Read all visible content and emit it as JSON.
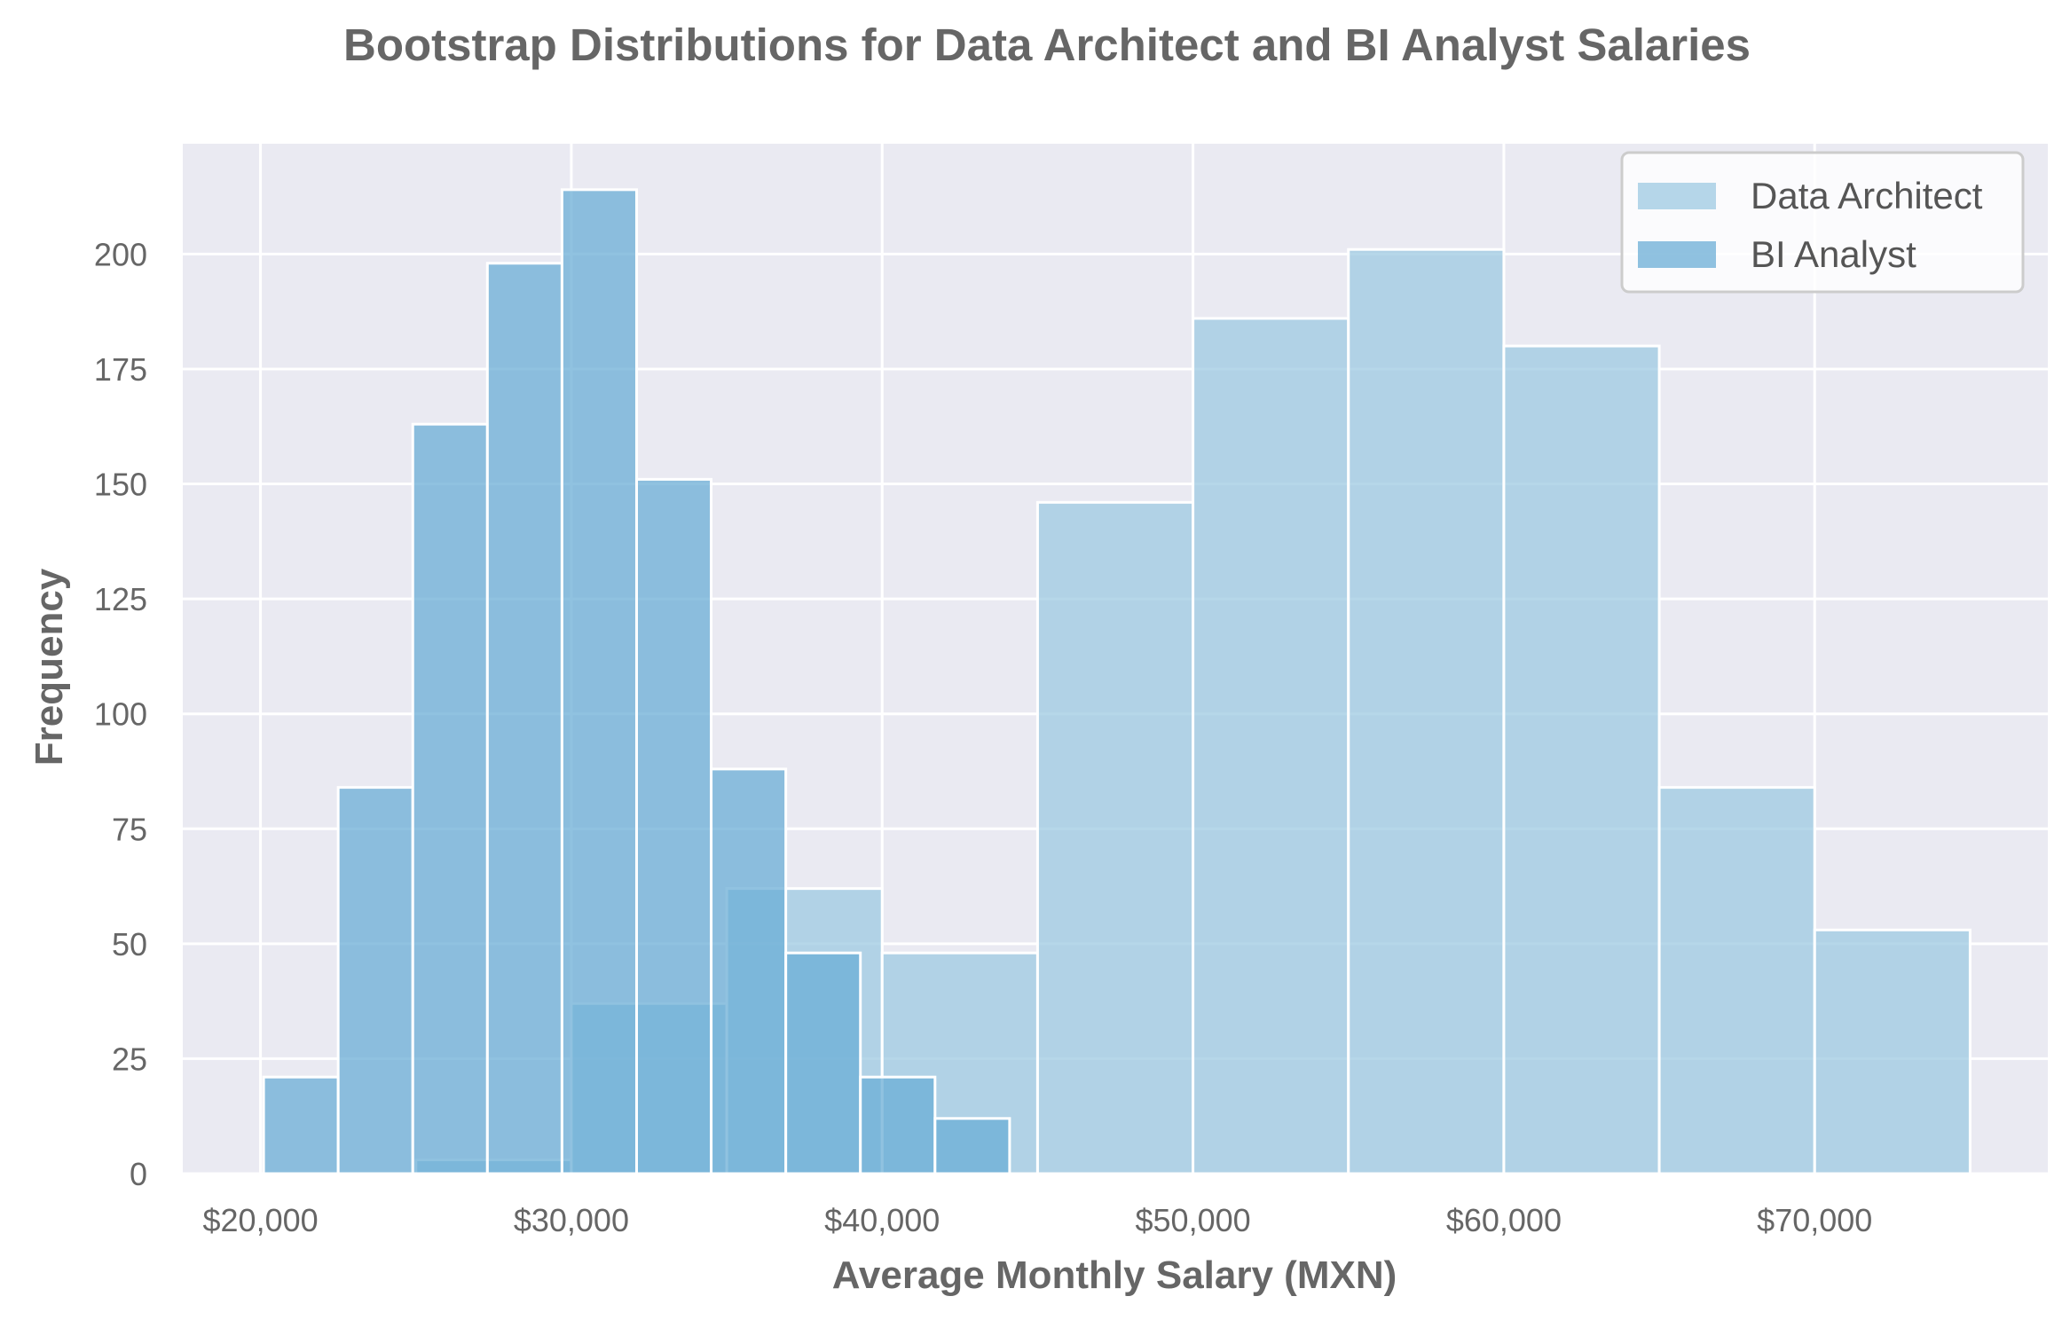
{
  "chart_data": {
    "type": "bar",
    "subtype": "overlaid-histogram",
    "title": "Bootstrap Distributions for Data Architect and BI Analyst Salaries",
    "xlabel": "Average Monthly Salary (MXN)",
    "ylabel": "Frequency",
    "xlim": [
      17500,
      77500
    ],
    "ylim": [
      0,
      224
    ],
    "xticks": [
      20000,
      30000,
      40000,
      50000,
      60000,
      70000
    ],
    "xtick_labels": [
      "$20,000",
      "$30,000",
      "$40,000",
      "$50,000",
      "$60,000",
      "$70,000"
    ],
    "yticks": [
      0,
      25,
      50,
      75,
      100,
      125,
      150,
      175,
      200
    ],
    "ytick_labels": [
      "0",
      "25",
      "50",
      "75",
      "100",
      "125",
      "150",
      "175",
      "200"
    ],
    "grid": true,
    "legend_position": "top-right",
    "series": [
      {
        "name": "Data Architect",
        "color": "#9ecae1",
        "opacity": 0.75,
        "bins": [
          {
            "x0": 25000,
            "x1": 30000,
            "value": 3
          },
          {
            "x0": 30000,
            "x1": 35000,
            "value": 37
          },
          {
            "x0": 35000,
            "x1": 40000,
            "value": 62
          },
          {
            "x0": 40000,
            "x1": 45000,
            "value": 48
          },
          {
            "x0": 45000,
            "x1": 50000,
            "value": 146
          },
          {
            "x0": 50000,
            "x1": 55000,
            "value": 186
          },
          {
            "x0": 55000,
            "x1": 60000,
            "value": 201
          },
          {
            "x0": 60000,
            "x1": 65000,
            "value": 180
          },
          {
            "x0": 65000,
            "x1": 70000,
            "value": 84
          },
          {
            "x0": 70000,
            "x1": 75000,
            "value": 53
          }
        ]
      },
      {
        "name": "BI Analyst",
        "color": "#6baed6",
        "opacity": 0.75,
        "bins": [
          {
            "x0": 20100,
            "x1": 22500,
            "value": 21
          },
          {
            "x0": 22500,
            "x1": 24900,
            "value": 84
          },
          {
            "x0": 24900,
            "x1": 27300,
            "value": 163
          },
          {
            "x0": 27300,
            "x1": 29700,
            "value": 198
          },
          {
            "x0": 29700,
            "x1": 32100,
            "value": 214
          },
          {
            "x0": 32100,
            "x1": 34500,
            "value": 151
          },
          {
            "x0": 34500,
            "x1": 36900,
            "value": 88
          },
          {
            "x0": 36900,
            "x1": 39300,
            "value": 48
          },
          {
            "x0": 39300,
            "x1": 41700,
            "value": 21
          },
          {
            "x0": 41700,
            "x1": 44100,
            "value": 12
          }
        ]
      }
    ]
  }
}
